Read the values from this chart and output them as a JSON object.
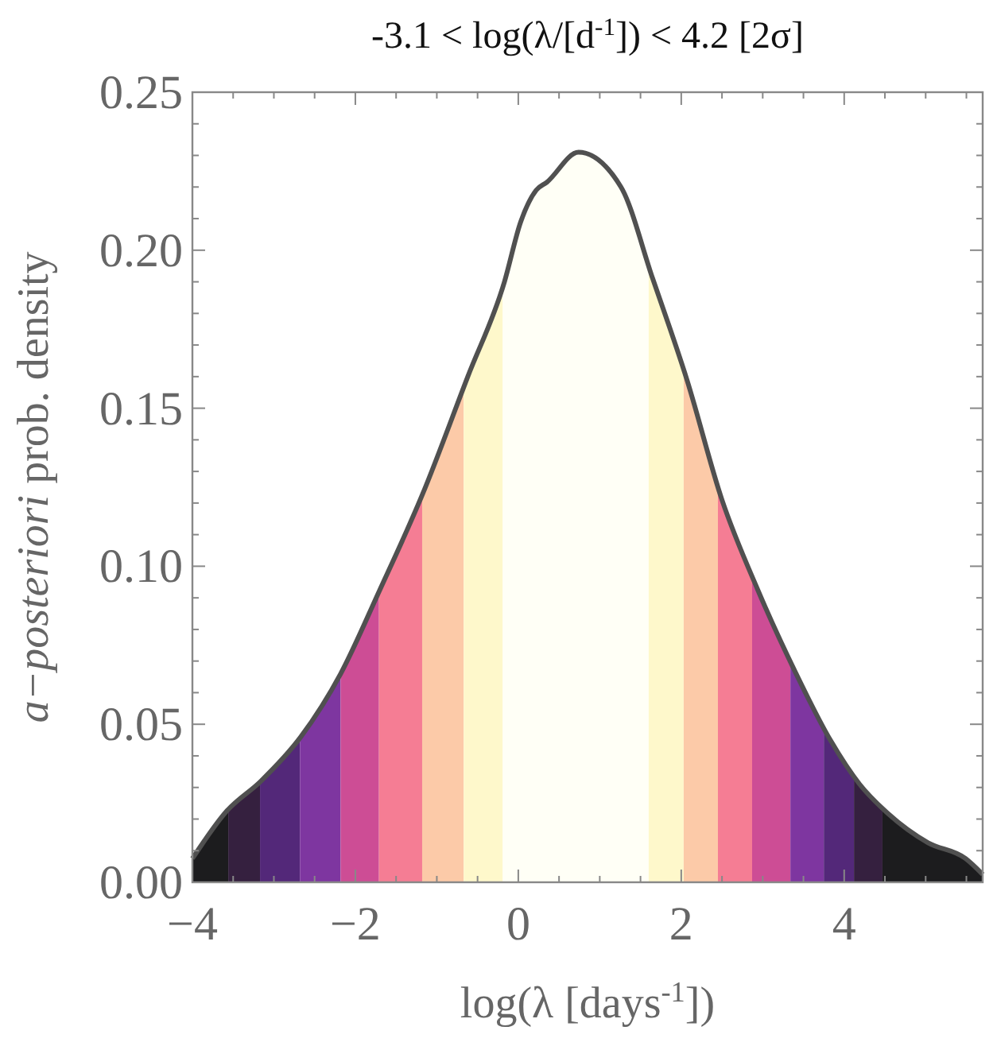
{
  "chart_data": {
    "type": "line",
    "title": "-3.1 < log(λ/[d$^{-1}$]) < 4.2 [2σ]",
    "xlabel": "log(λ [days$^{-1}$])",
    "ylabel": "a−posteriori prob. density",
    "xlim": [
      -4,
      5.7
    ],
    "ylim": [
      0,
      0.25
    ],
    "xticks": [
      -4,
      {
        "value": -3.5,
        "label": null
      },
      {
        "value": -3,
        "label": null
      },
      {
        "value": -2.5,
        "label": null
      },
      -2,
      {
        "value": -1.5,
        "label": null
      },
      {
        "value": -1,
        "label": null
      },
      {
        "value": -0.5,
        "label": null
      },
      0,
      {
        "value": 0.5,
        "label": null
      },
      {
        "value": 1,
        "label": null
      },
      {
        "value": 1.5,
        "label": null
      },
      2,
      {
        "value": 2.5,
        "label": null
      },
      {
        "value": 3,
        "label": null
      },
      {
        "value": 3.5,
        "label": null
      },
      4,
      {
        "value": 4.5,
        "label": null
      },
      {
        "value": 5,
        "label": null
      },
      {
        "value": 5.5,
        "label": null
      }
    ],
    "yticks": [
      {
        "value": 0,
        "label": "0.00"
      },
      {
        "value": 0.01,
        "label": null
      },
      {
        "value": 0.02,
        "label": null
      },
      {
        "value": 0.03,
        "label": null
      },
      {
        "value": 0.04,
        "label": null
      },
      {
        "value": 0.05,
        "label": "0.05"
      },
      {
        "value": 0.06,
        "label": null
      },
      {
        "value": 0.07,
        "label": null
      },
      {
        "value": 0.08,
        "label": null
      },
      {
        "value": 0.09,
        "label": null
      },
      {
        "value": 0.1,
        "label": "0.10"
      },
      {
        "value": 0.11,
        "label": null
      },
      {
        "value": 0.12,
        "label": null
      },
      {
        "value": 0.13,
        "label": null
      },
      {
        "value": 0.14,
        "label": null
      },
      {
        "value": 0.15,
        "label": "0.15"
      },
      {
        "value": 0.16,
        "label": null
      },
      {
        "value": 0.17,
        "label": null
      },
      {
        "value": 0.18,
        "label": null
      },
      {
        "value": 0.19,
        "label": null
      },
      {
        "value": 0.2,
        "label": "0.20"
      },
      {
        "value": 0.21,
        "label": null
      },
      {
        "value": 0.22,
        "label": null
      },
      {
        "value": 0.23,
        "label": null
      },
      {
        "value": 0.24,
        "label": null
      },
      {
        "value": 0.25,
        "label": "0.25"
      }
    ],
    "grid": false,
    "marker": "none",
    "line_style": "solid",
    "series": [
      {
        "color": "#505050",
        "x": [
          -4,
          -3.58,
          -3.16,
          -2.67,
          -2.18,
          -1.7,
          -1.18,
          -0.62,
          -0.17,
          0.03,
          0.22,
          0.35,
          0.74,
          1.26,
          1.65,
          2.07,
          2.5,
          2.94,
          3.41,
          3.83,
          4.19,
          4.54,
          5.03,
          5.49,
          5.7
        ],
        "values": [
          0.0075,
          0.0225,
          0.032,
          0.046,
          0.066,
          0.0925,
          0.1225,
          0.16,
          0.19,
          0.209,
          0.219,
          0.2215,
          0.231,
          0.22,
          0.191,
          0.159,
          0.121,
          0.0925,
          0.066,
          0.045,
          0.031,
          0.0217,
          0.0125,
          0.0075,
          0.0025
        ]
      }
    ],
    "bands": [
      {
        "axis": "x",
        "from": -4,
        "to": -3.56,
        "color": "#1c1c1e"
      },
      {
        "axis": "x",
        "from": -3.56,
        "to": -3.17,
        "color": "#35203f"
      },
      {
        "axis": "x",
        "from": -3.17,
        "to": -2.68,
        "color": "#532879"
      },
      {
        "axis": "x",
        "from": -2.68,
        "to": -2.18,
        "color": "#7e36a0"
      },
      {
        "axis": "x",
        "from": -2.18,
        "to": -1.71,
        "color": "#cd4d95"
      },
      {
        "axis": "x",
        "from": -1.71,
        "to": -1.18,
        "color": "#f57d94"
      },
      {
        "axis": "x",
        "from": -1.18,
        "to": -0.67,
        "color": "#fccaa8"
      },
      {
        "axis": "x",
        "from": -0.67,
        "to": -0.19,
        "color": "#fef8cb"
      },
      {
        "axis": "x",
        "from": -0.19,
        "to": 1.6,
        "color": "#fffff6"
      },
      {
        "axis": "x",
        "from": 1.6,
        "to": 2.03,
        "color": "#fef8cb"
      },
      {
        "axis": "x",
        "from": 2.03,
        "to": 2.45,
        "color": "#fccaa8"
      },
      {
        "axis": "x",
        "from": 2.45,
        "to": 2.87,
        "color": "#f57d94"
      },
      {
        "axis": "x",
        "from": 2.87,
        "to": 3.34,
        "color": "#cd4d95"
      },
      {
        "axis": "x",
        "from": 3.34,
        "to": 3.75,
        "color": "#7e36a0"
      },
      {
        "axis": "x",
        "from": 3.75,
        "to": 4.12,
        "color": "#532879"
      },
      {
        "axis": "x",
        "from": 4.12,
        "to": 4.47,
        "color": "#35203f"
      },
      {
        "axis": "x",
        "from": 4.47,
        "to": 5.7,
        "color": "#1c1c1e"
      }
    ]
  }
}
